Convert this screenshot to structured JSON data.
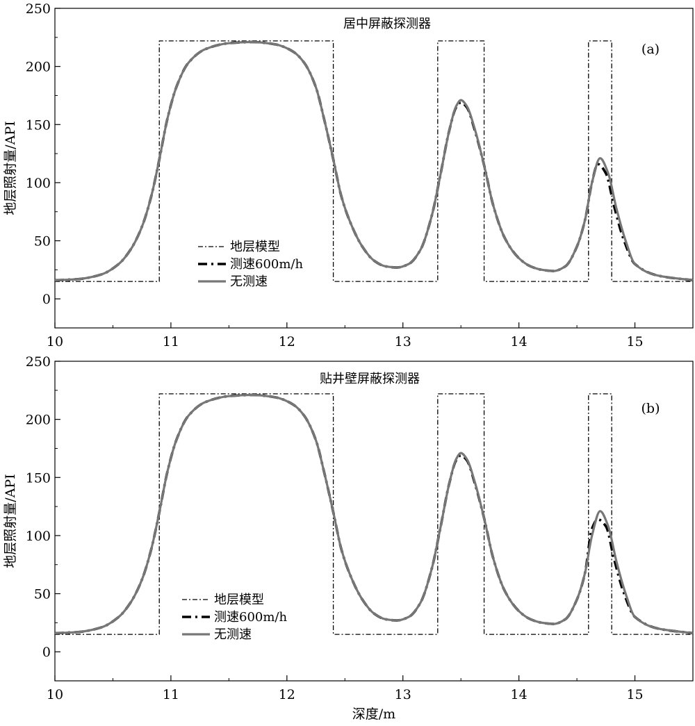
{
  "chart_data": [
    {
      "type": "line",
      "panel_label": "(a)",
      "title": "居中屏蔽探测器",
      "xlabel": "",
      "ylabel": "地层照射量/API",
      "xlim": [
        10,
        15.5
      ],
      "ylim": [
        -25,
        250
      ],
      "xticks": [
        10,
        11,
        12,
        13,
        14,
        15
      ],
      "yticks": [
        0,
        50,
        100,
        150,
        200,
        250
      ],
      "legend": [
        "地层模型",
        "测速600m/h",
        "无测速"
      ],
      "legend_position": "bottom-left",
      "series": [
        {
          "name": "地层模型",
          "style": "dashdot",
          "color": "#000000",
          "x": [
            10.0,
            10.9,
            10.9,
            12.4,
            12.4,
            13.3,
            13.3,
            13.7,
            13.7,
            14.6,
            14.6,
            14.8,
            14.8,
            15.5
          ],
          "y": [
            15,
            15,
            222,
            222,
            15,
            15,
            222,
            222,
            15,
            15,
            222,
            222,
            15,
            15
          ]
        },
        {
          "name": "测速600m/h",
          "style": "dashed-thick",
          "color": "#000000",
          "x": [
            10.0,
            10.2,
            10.4,
            10.55,
            10.65,
            10.75,
            10.83,
            10.9,
            10.97,
            11.05,
            11.15,
            11.3,
            11.5,
            11.7,
            11.9,
            12.05,
            12.15,
            12.25,
            12.32,
            12.4,
            12.47,
            12.55,
            12.65,
            12.75,
            12.85,
            12.95,
            13.05,
            13.15,
            13.25,
            13.32,
            13.4,
            13.46,
            13.5,
            13.55,
            13.62,
            13.7,
            13.78,
            13.88,
            14.0,
            14.1,
            14.2,
            14.3,
            14.4,
            14.5,
            14.57,
            14.63,
            14.68,
            14.75,
            14.82,
            14.9,
            15.0,
            15.2,
            15.5
          ],
          "y": [
            16,
            17,
            21,
            30,
            42,
            62,
            88,
            120,
            155,
            183,
            203,
            215,
            220,
            221,
            219,
            213,
            203,
            182,
            155,
            120,
            88,
            65,
            45,
            33,
            28,
            27,
            30,
            42,
            72,
            105,
            145,
            165,
            169,
            165,
            145,
            115,
            80,
            52,
            35,
            28,
            25,
            24,
            28,
            45,
            68,
            100,
            116,
            108,
            80,
            52,
            30,
            20,
            16
          ]
        },
        {
          "name": "无测速",
          "style": "solid-gray",
          "color": "#777777",
          "x": [
            10.0,
            10.2,
            10.4,
            10.55,
            10.65,
            10.75,
            10.83,
            10.9,
            10.97,
            11.05,
            11.15,
            11.3,
            11.5,
            11.7,
            11.9,
            12.05,
            12.15,
            12.25,
            12.32,
            12.4,
            12.47,
            12.55,
            12.65,
            12.75,
            12.85,
            12.95,
            13.05,
            13.15,
            13.25,
            13.32,
            13.4,
            13.46,
            13.5,
            13.55,
            13.62,
            13.7,
            13.78,
            13.88,
            14.0,
            14.1,
            14.2,
            14.3,
            14.4,
            14.5,
            14.57,
            14.63,
            14.7,
            14.77,
            14.84,
            14.92,
            15.0,
            15.2,
            15.5
          ],
          "y": [
            16,
            17,
            21,
            30,
            42,
            62,
            88,
            120,
            155,
            183,
            203,
            215,
            220,
            221,
            219,
            213,
            203,
            182,
            155,
            120,
            88,
            65,
            45,
            33,
            28,
            27,
            30,
            42,
            72,
            105,
            145,
            166,
            171,
            166,
            146,
            115,
            80,
            52,
            35,
            28,
            25,
            24,
            28,
            45,
            68,
            100,
            121,
            108,
            78,
            50,
            30,
            20,
            16
          ]
        }
      ]
    },
    {
      "type": "line",
      "panel_label": "(b)",
      "title": "贴井壁屏蔽探测器",
      "xlabel": "深度/m",
      "ylabel": "地层照射量/API",
      "xlim": [
        10,
        15.5
      ],
      "ylim": [
        -25,
        250
      ],
      "xticks": [
        10,
        11,
        12,
        13,
        14,
        15
      ],
      "yticks": [
        0,
        50,
        100,
        150,
        200,
        250
      ],
      "legend": [
        "地层模型",
        "测速600m/h",
        "无测速"
      ],
      "legend_position": "bottom-left",
      "series": [
        {
          "name": "地层模型",
          "style": "dashdot",
          "color": "#000000",
          "x": [
            10.0,
            10.9,
            10.9,
            12.4,
            12.4,
            13.3,
            13.3,
            13.7,
            13.7,
            14.6,
            14.6,
            14.8,
            14.8,
            15.5
          ],
          "y": [
            15,
            15,
            222,
            222,
            15,
            15,
            222,
            222,
            15,
            15,
            222,
            222,
            15,
            15
          ]
        },
        {
          "name": "测速600m/h",
          "style": "dashed-thick",
          "color": "#000000",
          "x": [
            10.0,
            10.2,
            10.4,
            10.55,
            10.65,
            10.75,
            10.83,
            10.9,
            10.97,
            11.05,
            11.15,
            11.3,
            11.5,
            11.7,
            11.9,
            12.05,
            12.15,
            12.25,
            12.32,
            12.4,
            12.47,
            12.55,
            12.65,
            12.75,
            12.85,
            12.95,
            13.05,
            13.15,
            13.25,
            13.32,
            13.4,
            13.46,
            13.5,
            13.55,
            13.62,
            13.7,
            13.78,
            13.88,
            14.0,
            14.1,
            14.2,
            14.3,
            14.4,
            14.5,
            14.57,
            14.63,
            14.68,
            14.75,
            14.82,
            14.9,
            15.0,
            15.2,
            15.5
          ],
          "y": [
            16,
            17,
            21,
            30,
            42,
            62,
            88,
            120,
            155,
            183,
            203,
            215,
            220,
            221,
            219,
            213,
            203,
            182,
            155,
            120,
            88,
            65,
            45,
            33,
            28,
            27,
            30,
            42,
            72,
            105,
            145,
            165,
            169,
            165,
            145,
            115,
            80,
            52,
            35,
            28,
            25,
            24,
            28,
            45,
            68,
            106,
            114,
            108,
            80,
            52,
            30,
            20,
            16
          ]
        },
        {
          "name": "无测速",
          "style": "solid-gray",
          "color": "#777777",
          "x": [
            10.0,
            10.2,
            10.4,
            10.55,
            10.65,
            10.75,
            10.83,
            10.9,
            10.97,
            11.05,
            11.15,
            11.3,
            11.5,
            11.7,
            11.9,
            12.05,
            12.15,
            12.25,
            12.32,
            12.4,
            12.47,
            12.55,
            12.65,
            12.75,
            12.85,
            12.95,
            13.05,
            13.15,
            13.25,
            13.32,
            13.4,
            13.46,
            13.5,
            13.55,
            13.62,
            13.7,
            13.78,
            13.88,
            14.0,
            14.1,
            14.2,
            14.3,
            14.4,
            14.5,
            14.57,
            14.63,
            14.7,
            14.77,
            14.84,
            14.92,
            15.0,
            15.2,
            15.5
          ],
          "y": [
            16,
            17,
            21,
            30,
            42,
            62,
            88,
            120,
            155,
            183,
            203,
            215,
            220,
            221,
            219,
            213,
            203,
            182,
            155,
            120,
            88,
            65,
            45,
            33,
            28,
            27,
            30,
            42,
            72,
            105,
            145,
            166,
            171,
            166,
            146,
            115,
            80,
            52,
            35,
            28,
            25,
            24,
            28,
            45,
            68,
            100,
            121,
            108,
            78,
            50,
            30,
            20,
            16
          ]
        }
      ]
    }
  ]
}
